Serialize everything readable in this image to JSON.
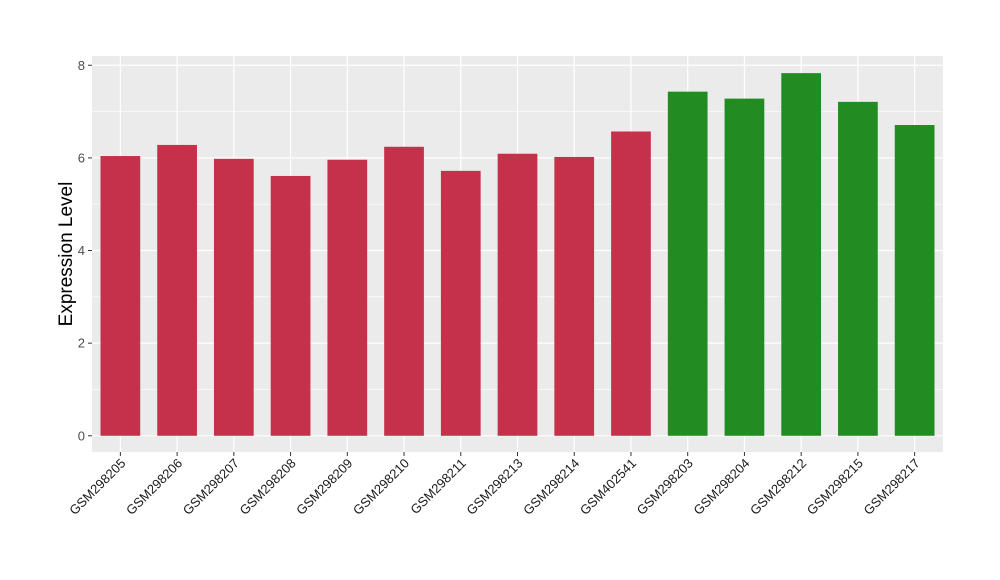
{
  "chart_data": {
    "type": "bar",
    "title": "",
    "xlabel": "",
    "ylabel": "Expression Level",
    "ylim": [
      -0.35,
      8.2
    ],
    "yticks": [
      0,
      2,
      4,
      6,
      8
    ],
    "grid": true,
    "categories": [
      "GSM298205",
      "GSM298206",
      "GSM298207",
      "GSM298208",
      "GSM298209",
      "GSM298210",
      "GSM298211",
      "GSM298213",
      "GSM298214",
      "GSM402541",
      "GSM298203",
      "GSM298204",
      "GSM298212",
      "GSM298215",
      "GSM298217"
    ],
    "values": [
      6.04,
      6.28,
      5.98,
      5.61,
      5.96,
      6.24,
      5.72,
      6.09,
      6.02,
      6.57,
      7.43,
      7.28,
      7.83,
      7.21,
      6.71
    ],
    "group": [
      0,
      0,
      0,
      0,
      0,
      0,
      0,
      0,
      0,
      0,
      1,
      1,
      1,
      1,
      1
    ],
    "colors": [
      "#c5304a",
      "#228b22"
    ],
    "panel_background": "#ebebeb",
    "grid_color": "#ffffff"
  }
}
